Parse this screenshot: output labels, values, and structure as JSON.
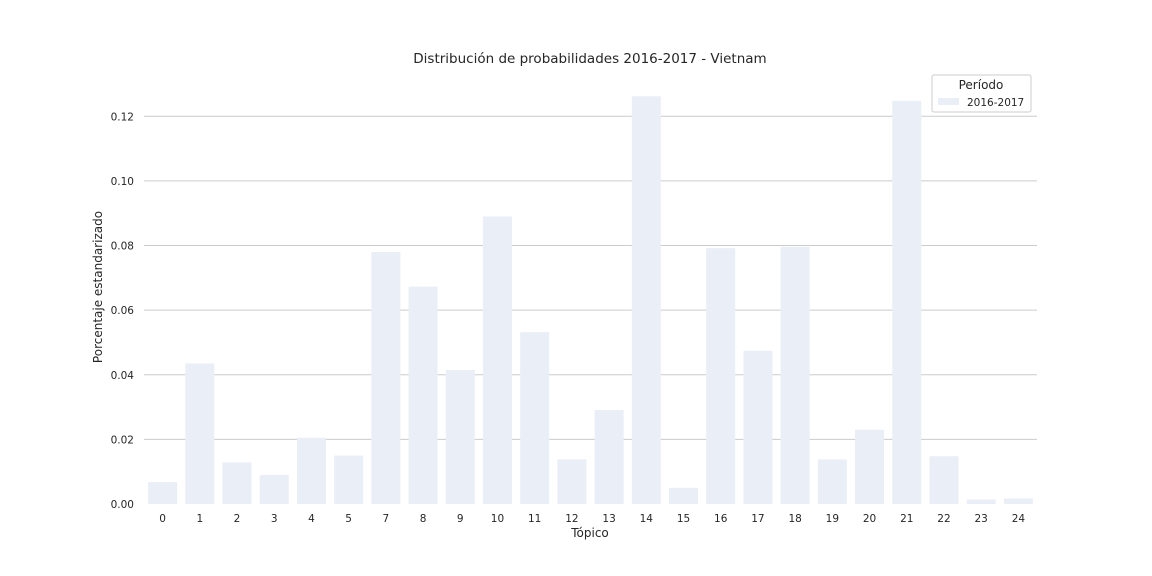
{
  "chart_data": {
    "type": "bar",
    "title": "Distribución de probabilidades 2016-2017 - Vietnam",
    "xlabel": "Tópico",
    "ylabel": "Porcentaje estandarizado",
    "categories": [
      "0",
      "1",
      "2",
      "3",
      "4",
      "5",
      "7",
      "8",
      "9",
      "10",
      "11",
      "12",
      "13",
      "14",
      "15",
      "16",
      "17",
      "18",
      "19",
      "20",
      "21",
      "22",
      "23",
      "24"
    ],
    "series": [
      {
        "name": "2016-2017",
        "values": [
          0.0068,
          0.0435,
          0.0129,
          0.009,
          0.0205,
          0.015,
          0.078,
          0.0673,
          0.0415,
          0.089,
          0.0532,
          0.0138,
          0.0291,
          0.1262,
          0.005,
          0.0792,
          0.0474,
          0.0796,
          0.0138,
          0.023,
          0.1248,
          0.0148,
          0.0014,
          0.0017
        ],
        "color": "#eaeef7"
      }
    ],
    "ylim": [
      0,
      0.13
    ],
    "yticks": [
      "0.00",
      "0.02",
      "0.04",
      "0.06",
      "0.08",
      "0.10",
      "0.12"
    ],
    "grid": "y",
    "legend": {
      "title": "Período",
      "placement": "top-right"
    }
  }
}
